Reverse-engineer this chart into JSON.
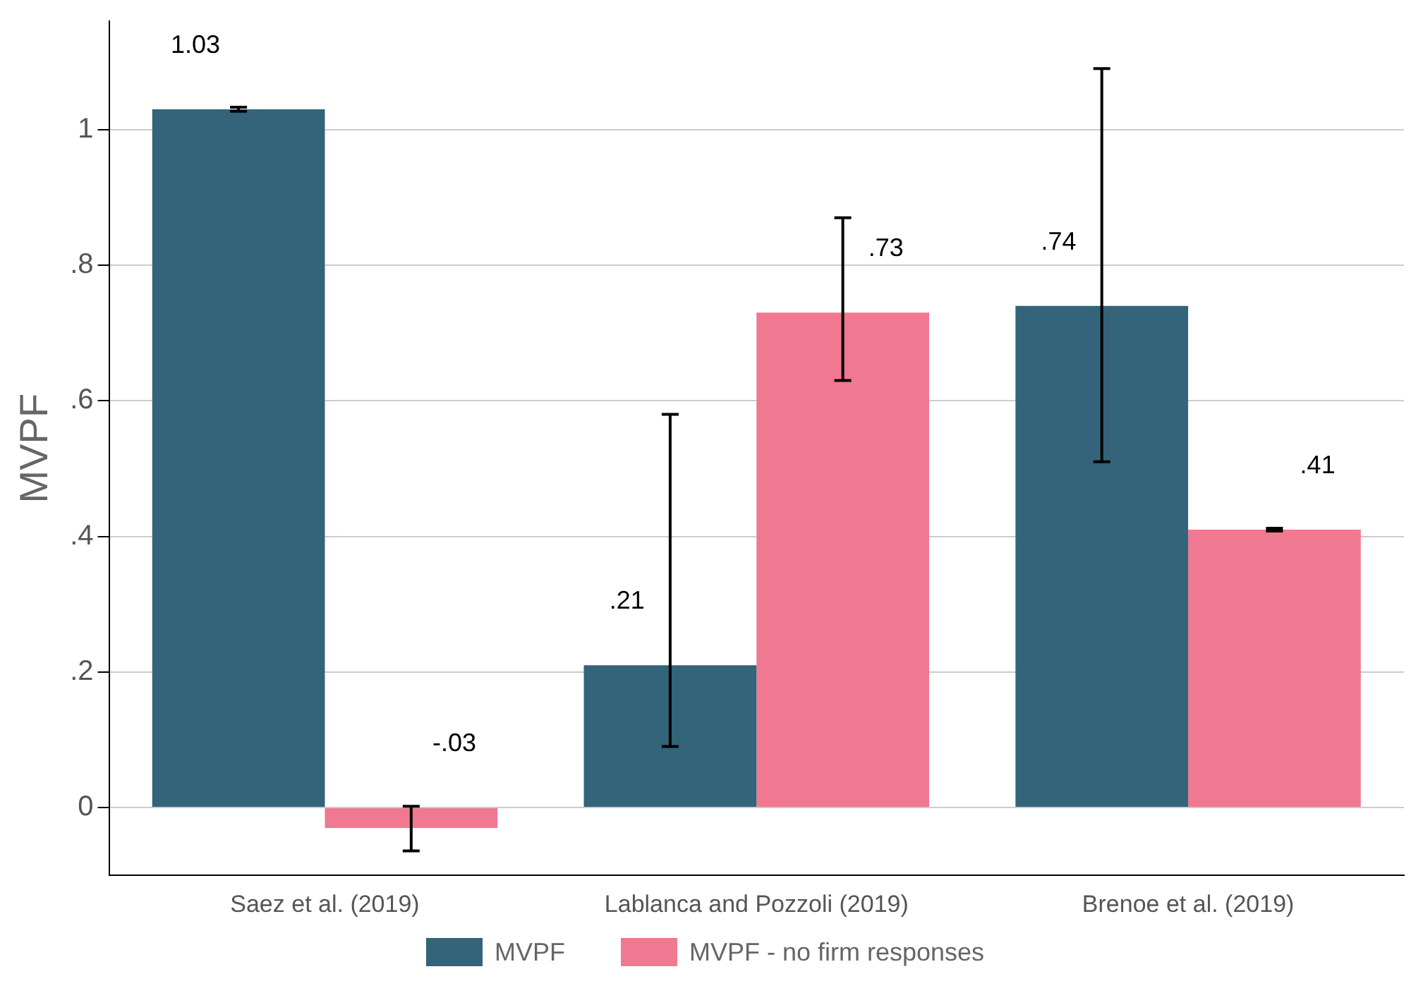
{
  "chart_data": {
    "type": "bar",
    "ylabel": "MVPF",
    "categories": [
      "Saez et al. (2019)",
      "Lablanca and Pozzoli (2019)",
      "Brenoe et al. (2019)"
    ],
    "series": [
      {
        "name": "MVPF",
        "color": "#33647a",
        "values": [
          1.03,
          0.21,
          0.74
        ],
        "errors": [
          [
            1.027,
            1.033
          ],
          [
            0.09,
            0.58
          ],
          [
            0.51,
            1.09
          ]
        ],
        "value_labels": [
          "1.03",
          ".21",
          ".74"
        ]
      },
      {
        "name": "MVPF - no firm responses",
        "color": "#f07890",
        "values": [
          -0.03,
          0.73,
          0.41
        ],
        "errors": [
          [
            -0.064,
            0.002
          ],
          [
            0.63,
            0.87
          ],
          [
            0.408,
            0.412
          ]
        ],
        "value_labels": [
          "-.03",
          ".73",
          ".41"
        ]
      }
    ],
    "ylim": [
      -0.1,
      1.16
    ],
    "yticks": [
      {
        "value": 0,
        "label": "0"
      },
      {
        "value": 0.2,
        "label": ".2"
      },
      {
        "value": 0.4,
        "label": ".4"
      },
      {
        "value": 0.6,
        "label": ".6"
      },
      {
        "value": 0.8,
        "label": ".8"
      },
      {
        "value": 1,
        "label": "1"
      }
    ],
    "grid": "y",
    "legend": "bottom"
  }
}
